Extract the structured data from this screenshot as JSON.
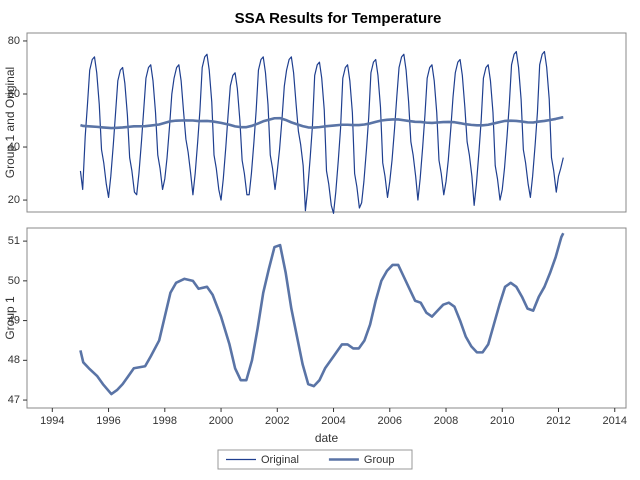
{
  "chart_data": [
    {
      "type": "line",
      "title": "SSA Results for Temperature",
      "ylabel": "Group 1 and Original",
      "ylim": [
        15.5,
        83
      ],
      "yticks": [
        20,
        40,
        60,
        80
      ],
      "xlim": [
        1993.1,
        2014.4
      ],
      "legend": "bottom",
      "series": [
        {
          "name": "Original",
          "color": "#1f3f8f",
          "width": 1.2,
          "x": [
            1995.0,
            1995.08,
            1995.17,
            1995.25,
            1995.33,
            1995.42,
            1995.5,
            1995.58,
            1995.67,
            1995.75,
            1995.83,
            1995.92,
            1996.0,
            1996.08,
            1996.17,
            1996.25,
            1996.33,
            1996.42,
            1996.5,
            1996.58,
            1996.67,
            1996.75,
            1996.83,
            1996.92,
            1997.0,
            1997.08,
            1997.17,
            1997.25,
            1997.33,
            1997.42,
            1997.5,
            1997.58,
            1997.67,
            1997.75,
            1997.83,
            1997.92,
            1998.0,
            1998.08,
            1998.17,
            1998.25,
            1998.33,
            1998.42,
            1998.5,
            1998.58,
            1998.67,
            1998.75,
            1998.83,
            1998.92,
            1999.0,
            1999.08,
            1999.17,
            1999.25,
            1999.33,
            1999.42,
            1999.5,
            1999.58,
            1999.67,
            1999.75,
            1999.83,
            1999.92,
            2000.0,
            2000.08,
            2000.17,
            2000.25,
            2000.33,
            2000.42,
            2000.5,
            2000.58,
            2000.67,
            2000.75,
            2000.83,
            2000.92,
            2001.0,
            2001.08,
            2001.17,
            2001.25,
            2001.33,
            2001.42,
            2001.5,
            2001.58,
            2001.67,
            2001.75,
            2001.83,
            2001.92,
            2002.0,
            2002.08,
            2002.17,
            2002.25,
            2002.33,
            2002.42,
            2002.5,
            2002.58,
            2002.67,
            2002.75,
            2002.83,
            2002.92,
            2003.0,
            2003.08,
            2003.17,
            2003.25,
            2003.33,
            2003.42,
            2003.5,
            2003.58,
            2003.67,
            2003.75,
            2003.83,
            2003.92,
            2004.0,
            2004.08,
            2004.17,
            2004.25,
            2004.33,
            2004.42,
            2004.5,
            2004.58,
            2004.67,
            2004.75,
            2004.83,
            2004.92,
            2005.0,
            2005.08,
            2005.17,
            2005.25,
            2005.33,
            2005.42,
            2005.5,
            2005.58,
            2005.67,
            2005.75,
            2005.83,
            2005.92,
            2006.0,
            2006.08,
            2006.17,
            2006.25,
            2006.33,
            2006.42,
            2006.5,
            2006.58,
            2006.67,
            2006.75,
            2006.83,
            2006.92,
            2007.0,
            2007.08,
            2007.17,
            2007.25,
            2007.33,
            2007.42,
            2007.5,
            2007.58,
            2007.67,
            2007.75,
            2007.83,
            2007.92,
            2008.0,
            2008.08,
            2008.17,
            2008.25,
            2008.33,
            2008.42,
            2008.5,
            2008.58,
            2008.67,
            2008.75,
            2008.83,
            2008.92,
            2009.0,
            2009.08,
            2009.17,
            2009.25,
            2009.33,
            2009.42,
            2009.5,
            2009.58,
            2009.67,
            2009.75,
            2009.83,
            2009.92,
            2010.0,
            2010.08,
            2010.17,
            2010.25,
            2010.33,
            2010.42,
            2010.5,
            2010.58,
            2010.67,
            2010.75,
            2010.83,
            2010.92,
            2011.0,
            2011.08,
            2011.17,
            2011.25,
            2011.33,
            2011.42,
            2011.5,
            2011.58,
            2011.67,
            2011.75,
            2011.83,
            2011.92,
            2012.0,
            2012.08,
            2012.17
          ],
          "values": [
            31,
            24,
            44,
            56,
            69,
            73,
            74,
            68,
            56,
            39,
            34,
            26,
            21,
            29,
            41,
            53,
            65,
            69,
            70,
            64,
            52,
            36,
            31,
            23,
            22,
            30,
            42,
            54,
            66,
            70,
            71,
            65,
            53,
            37,
            32,
            24,
            28,
            36,
            48,
            60,
            66,
            70,
            71,
            65,
            53,
            43,
            38,
            30,
            22,
            30,
            42,
            54,
            70,
            74,
            75,
            69,
            57,
            37,
            32,
            24,
            20,
            28,
            40,
            52,
            63,
            67,
            68,
            62,
            50,
            35,
            30,
            22,
            22,
            30,
            42,
            54,
            69,
            73,
            74,
            68,
            56,
            37,
            32,
            24,
            31,
            39,
            51,
            63,
            69,
            73,
            74,
            68,
            56,
            46,
            41,
            33,
            16,
            24,
            36,
            48,
            67,
            71,
            72,
            66,
            54,
            31,
            26,
            18,
            15,
            23,
            35,
            47,
            66,
            70,
            71,
            65,
            53,
            30,
            25,
            17,
            19,
            27,
            39,
            51,
            68,
            72,
            73,
            67,
            55,
            34,
            29,
            21,
            27,
            35,
            47,
            59,
            70,
            74,
            75,
            69,
            57,
            42,
            37,
            29,
            20,
            28,
            40,
            52,
            66,
            70,
            71,
            65,
            53,
            35,
            30,
            22,
            27,
            35,
            47,
            59,
            68,
            72,
            73,
            67,
            55,
            42,
            37,
            29,
            18,
            26,
            38,
            50,
            66,
            70,
            71,
            65,
            53,
            33,
            28,
            20,
            24,
            32,
            44,
            56,
            71,
            75,
            76,
            70,
            58,
            39,
            34,
            26,
            21,
            29,
            41,
            53,
            71,
            75,
            76,
            70,
            58,
            36,
            31,
            23,
            29,
            32,
            36
          ]
        },
        {
          "name": "Group",
          "color": "#5a74a6",
          "width": 2.6,
          "x": [
            1995.0,
            1995.1,
            1995.3,
            1995.6,
            1995.8,
            1996.1,
            1996.3,
            1996.5,
            1996.7,
            1996.9,
            1997.3,
            1997.5,
            1997.8,
            1998.0,
            1998.2,
            1998.4,
            1998.7,
            1999.0,
            1999.2,
            1999.5,
            1999.7,
            2000.0,
            2000.3,
            2000.5,
            2000.7,
            2000.9,
            2001.1,
            2001.3,
            2001.5,
            2001.7,
            2001.9,
            2002.1,
            2002.3,
            2002.5,
            2002.7,
            2002.9,
            2003.1,
            2003.3,
            2003.5,
            2003.7,
            2004.0,
            2004.3,
            2004.5,
            2004.7,
            2004.9,
            2005.1,
            2005.3,
            2005.5,
            2005.7,
            2005.9,
            2006.1,
            2006.3,
            2006.5,
            2006.7,
            2006.9,
            2007.1,
            2007.3,
            2007.5,
            2007.7,
            2007.9,
            2008.1,
            2008.3,
            2008.5,
            2008.7,
            2008.9,
            2009.1,
            2009.3,
            2009.5,
            2009.7,
            2009.9,
            2010.1,
            2010.3,
            2010.5,
            2010.7,
            2010.9,
            2011.1,
            2011.3,
            2011.5,
            2011.7,
            2011.9,
            2012.1,
            2012.17
          ],
          "values": [
            48.25,
            47.95,
            47.8,
            47.6,
            47.4,
            47.15,
            47.25,
            47.4,
            47.6,
            47.8,
            47.85,
            48.1,
            48.5,
            49.1,
            49.7,
            49.95,
            50.05,
            50.0,
            49.8,
            49.85,
            49.65,
            49.1,
            48.4,
            47.8,
            47.5,
            47.5,
            48.0,
            48.8,
            49.7,
            50.3,
            50.85,
            50.9,
            50.2,
            49.3,
            48.6,
            47.9,
            47.4,
            47.35,
            47.5,
            47.8,
            48.1,
            48.4,
            48.4,
            48.3,
            48.3,
            48.5,
            48.9,
            49.5,
            50.0,
            50.25,
            50.4,
            50.4,
            50.1,
            49.8,
            49.5,
            49.45,
            49.2,
            49.1,
            49.25,
            49.4,
            49.45,
            49.35,
            49.0,
            48.6,
            48.35,
            48.2,
            48.2,
            48.4,
            48.9,
            49.4,
            49.85,
            49.95,
            49.85,
            49.6,
            49.3,
            49.25,
            49.6,
            49.85,
            50.2,
            50.6,
            51.1,
            51.2
          ]
        }
      ]
    },
    {
      "type": "line",
      "ylabel": "Group 1",
      "xlabel": "date",
      "ylim": [
        46.8,
        51.33
      ],
      "yticks": [
        47,
        48,
        49,
        50,
        51
      ],
      "xlim": [
        1993.1,
        2014.4
      ],
      "xticks": [
        1994,
        1996,
        1998,
        2000,
        2002,
        2004,
        2006,
        2008,
        2010,
        2012,
        2014
      ],
      "series": [
        {
          "color": "#5a74a6",
          "width": 2.6,
          "x": [
            1995.0,
            1995.1,
            1995.3,
            1995.6,
            1995.8,
            1996.1,
            1996.3,
            1996.5,
            1996.7,
            1996.9,
            1997.3,
            1997.5,
            1997.8,
            1998.0,
            1998.2,
            1998.4,
            1998.7,
            1999.0,
            1999.2,
            1999.5,
            1999.7,
            2000.0,
            2000.3,
            2000.5,
            2000.7,
            2000.9,
            2001.1,
            2001.3,
            2001.5,
            2001.7,
            2001.9,
            2002.1,
            2002.3,
            2002.5,
            2002.7,
            2002.9,
            2003.1,
            2003.3,
            2003.5,
            2003.7,
            2004.0,
            2004.3,
            2004.5,
            2004.7,
            2004.9,
            2005.1,
            2005.3,
            2005.5,
            2005.7,
            2005.9,
            2006.1,
            2006.3,
            2006.5,
            2006.7,
            2006.9,
            2007.1,
            2007.3,
            2007.5,
            2007.7,
            2007.9,
            2008.1,
            2008.3,
            2008.5,
            2008.7,
            2008.9,
            2009.1,
            2009.3,
            2009.5,
            2009.7,
            2009.9,
            2010.1,
            2010.3,
            2010.5,
            2010.7,
            2010.9,
            2011.1,
            2011.3,
            2011.5,
            2011.7,
            2011.9,
            2012.1,
            2012.17
          ],
          "values": [
            48.25,
            47.95,
            47.8,
            47.6,
            47.4,
            47.15,
            47.25,
            47.4,
            47.6,
            47.8,
            47.85,
            48.1,
            48.5,
            49.1,
            49.7,
            49.95,
            50.05,
            50.0,
            49.8,
            49.85,
            49.65,
            49.1,
            48.4,
            47.8,
            47.5,
            47.5,
            48.0,
            48.8,
            49.7,
            50.3,
            50.85,
            50.9,
            50.2,
            49.3,
            48.6,
            47.9,
            47.4,
            47.35,
            47.5,
            47.8,
            48.1,
            48.4,
            48.4,
            48.3,
            48.3,
            48.5,
            48.9,
            49.5,
            50.0,
            50.25,
            50.4,
            50.4,
            50.1,
            49.8,
            49.5,
            49.45,
            49.2,
            49.1,
            49.25,
            49.4,
            49.45,
            49.35,
            49.0,
            48.6,
            48.35,
            48.2,
            48.2,
            48.4,
            48.9,
            49.4,
            49.85,
            49.95,
            49.85,
            49.6,
            49.3,
            49.25,
            49.6,
            49.85,
            50.2,
            50.6,
            51.1,
            51.2
          ]
        }
      ]
    }
  ]
}
